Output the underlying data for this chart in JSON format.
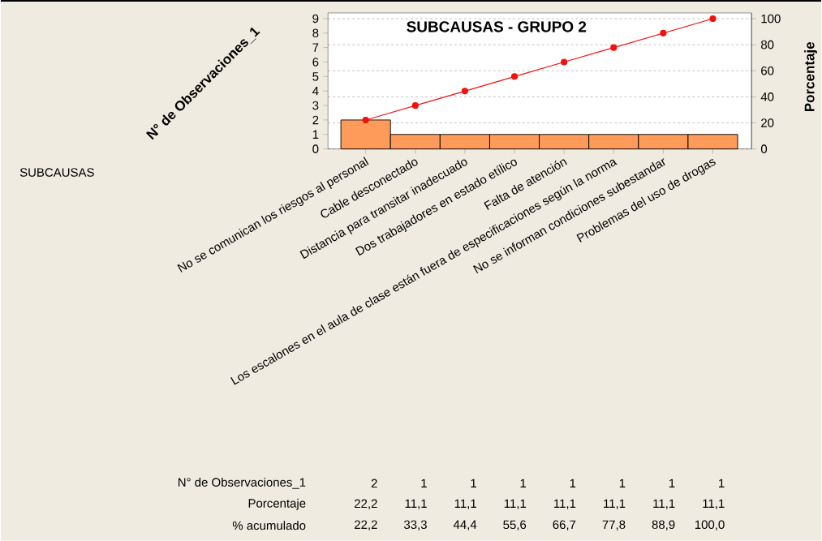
{
  "chart_data": {
    "type": "bar",
    "title": "SUBCAUSAS - GRUPO 2",
    "ylabel": "N° de Observaciones_1",
    "y2label": "Porcentaje",
    "categories": [
      "No se comunican los riesgos al personal",
      "Cable desconectado",
      "Distancia para transitar inadecuado",
      "Dos trabajadores en estado etílico",
      "Falta de atención",
      "Los escalones en el aula de clase están fuera de especificaciones según la norma",
      "No se informan condiciones subestandar",
      "Problemas del uso de drogas"
    ],
    "series": [
      {
        "color": "#fe9a5a",
        "values": [
          2,
          1,
          1,
          1,
          1,
          1,
          1,
          1
        ],
        "value_labels": [
          "2",
          "1",
          "1",
          "1",
          "1",
          "1",
          "1",
          "1"
        ]
      },
      {
        "type": "line",
        "axis": "y2",
        "color": "#f01010",
        "values": [
          22.2,
          33.3,
          44.4,
          55.6,
          66.7,
          77.8,
          88.9,
          100.0
        ],
        "value_labels": [
          "22,2",
          "33,3",
          "44,4",
          "55,6",
          "66,7",
          "77,8",
          "88,9",
          "100,0"
        ]
      }
    ],
    "annotations": [
      "SUBCAUSAS",
      "% acumulado",
      "22,2",
      "11,1",
      "11,1",
      "11,1",
      "11,1",
      "11,1",
      "11,1",
      "11,1"
    ],
    "ylim": [
      0,
      9.39
    ],
    "yticks": [
      0,
      1,
      2,
      3,
      4,
      5,
      6,
      7,
      8,
      9
    ],
    "y2lim": [
      0,
      104.4
    ],
    "y2ticks": [
      0,
      20,
      40,
      60,
      80,
      100
    ],
    "grid": "y2",
    "marker": "circle",
    "line_style": "solid"
  }
}
